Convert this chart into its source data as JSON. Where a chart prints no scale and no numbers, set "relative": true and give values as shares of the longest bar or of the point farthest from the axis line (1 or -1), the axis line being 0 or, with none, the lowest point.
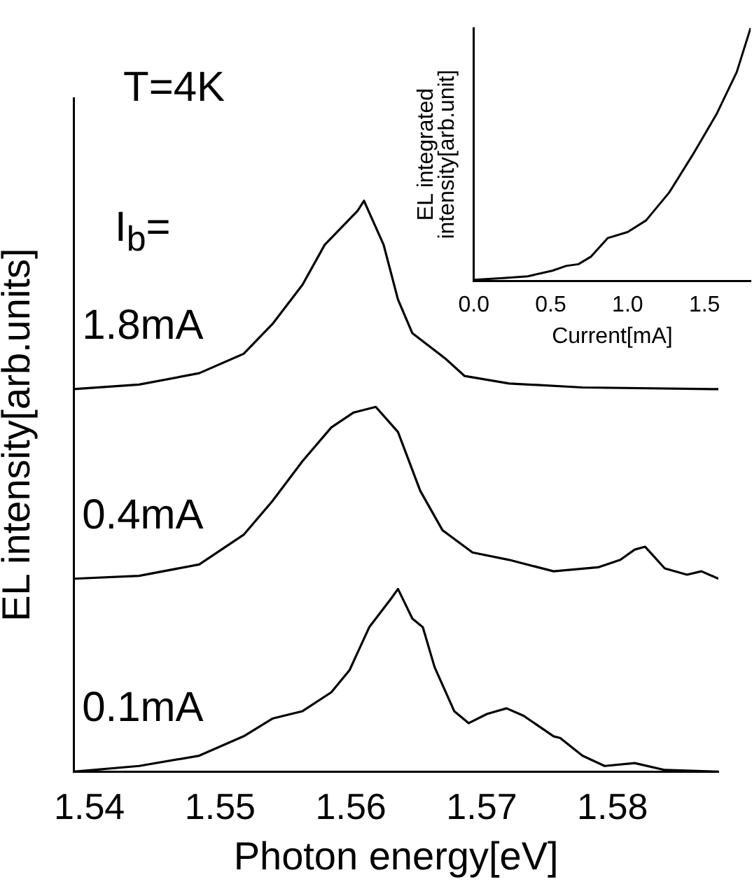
{
  "chart_data": [
    {
      "type": "line",
      "xlabel": "Photon energy[eV]",
      "ylabel": "EL intensity[arb.units]",
      "relative": true,
      "xlim": [
        1.5388,
        1.5881
      ],
      "xticks": [
        1.54,
        1.55,
        1.56,
        1.57,
        1.58
      ],
      "grid": false,
      "legend": false,
      "annotations": [
        "T=4K",
        "I$_{b}$="
      ],
      "series": [
        {
          "name": "1.8mA",
          "color": "#000000",
          "x": [
            1.5388,
            1.5438,
            1.5484,
            1.5518,
            1.554,
            1.5563,
            1.558,
            1.5594,
            1.5605,
            1.561,
            1.5625,
            1.5636,
            1.5647,
            1.5672,
            1.5687,
            1.5721,
            1.5777,
            1.5881
          ],
          "values": [
            0.67,
            0.678,
            0.698,
            0.732,
            0.784,
            0.853,
            0.923,
            0.956,
            0.982,
            1.0,
            0.923,
            0.827,
            0.768,
            0.724,
            0.693,
            0.68,
            0.673,
            0.67
          ]
        },
        {
          "name": "0.4mA",
          "color": "#000000",
          "x": [
            1.5388,
            1.5438,
            1.5484,
            1.5518,
            1.554,
            1.5563,
            1.5585,
            1.5602,
            1.5619,
            1.5636,
            1.5653,
            1.567,
            1.5693,
            1.5721,
            1.5755,
            1.5789,
            1.5806,
            1.5817,
            1.5825,
            1.584,
            1.5857,
            1.5868,
            1.5881
          ],
          "values": [
            0.338,
            0.343,
            0.363,
            0.415,
            0.474,
            0.544,
            0.603,
            0.629,
            0.639,
            0.595,
            0.492,
            0.423,
            0.384,
            0.371,
            0.351,
            0.358,
            0.371,
            0.389,
            0.394,
            0.356,
            0.345,
            0.351,
            0.338
          ]
        },
        {
          "name": "0.1mA",
          "color": "#000000",
          "x": [
            1.5388,
            1.5438,
            1.5484,
            1.5518,
            1.554,
            1.5563,
            1.5585,
            1.5599,
            1.5614,
            1.5631,
            1.5636,
            1.5647,
            1.5655,
            1.5664,
            1.5679,
            1.569,
            1.5704,
            1.5719,
            1.5732,
            1.5755,
            1.576,
            1.5777,
            1.5794,
            1.5817,
            1.584,
            1.5881
          ],
          "values": [
            0,
            0.01,
            0.028,
            0.062,
            0.093,
            0.106,
            0.139,
            0.178,
            0.253,
            0.304,
            0.32,
            0.268,
            0.253,
            0.183,
            0.106,
            0.085,
            0.101,
            0.111,
            0.098,
            0.062,
            0.059,
            0.028,
            0.01,
            0.015,
            0.003,
            0
          ]
        }
      ]
    },
    {
      "type": "line",
      "xlabel": "Current[mA]",
      "ylabel": "EL integrated\nintensity[arb.unit]",
      "relative": true,
      "xlim": [
        0,
        1.8
      ],
      "xticks": [
        {
          "value": 0,
          "label": "0.0"
        },
        {
          "value": 0.5,
          "label": "0.5"
        },
        {
          "value": 1,
          "label": "1.0"
        },
        {
          "value": 1.5,
          "label": "1.5"
        }
      ],
      "grid": false,
      "legend": false,
      "series": [
        {
          "color": "#000000",
          "x": [
            0,
            0.19,
            0.35,
            0.51,
            0.6,
            0.68,
            0.76,
            0.87,
            1.0,
            1.12,
            1.27,
            1.42,
            1.58,
            1.71,
            1.8
          ],
          "values": [
            0.004,
            0.011,
            0.018,
            0.04,
            0.059,
            0.066,
            0.095,
            0.169,
            0.193,
            0.239,
            0.349,
            0.495,
            0.661,
            0.826,
            1.0
          ]
        }
      ]
    }
  ]
}
